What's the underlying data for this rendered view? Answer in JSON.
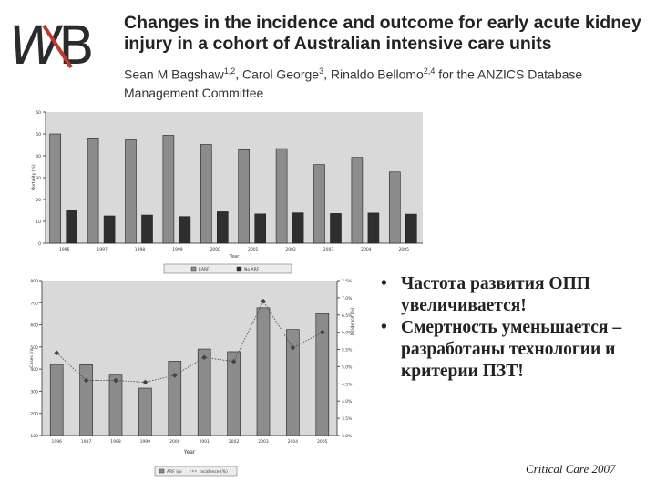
{
  "logo": {
    "text": "WB",
    "accent": "#c0392b"
  },
  "header": {
    "title": "Changes in the incidence and outcome for early acute kidney injury in a cohort of Australian intensive care units",
    "authors": [
      {
        "name": "Sean M Bagshaw",
        "sup": "1,2",
        "sep": ", "
      },
      {
        "name": "Carol George",
        "sup": "3",
        "sep": ", "
      },
      {
        "name": "Rinaldo Bellomo",
        "sup": "2,4",
        "sep": " "
      },
      {
        "name": "for the ANZICS Database Management Committee",
        "sup": "",
        "sep": ""
      }
    ]
  },
  "bullets": [
    "Частота развития ОПП увеличивается!",
    "Смертность уменьшается – разработаны технологии и критерии ПЗТ!"
  ],
  "citation": "Critical Care 2007",
  "chart_data": [
    {
      "type": "bar",
      "ylabel": "Mortality (%)",
      "xlabel": "Year",
      "ylim": [
        0,
        60
      ],
      "yticks": [
        0,
        10,
        20,
        30,
        40,
        50,
        60
      ],
      "categories": [
        "1996",
        "1997",
        "1998",
        "1999",
        "2000",
        "2001",
        "2002",
        "2003",
        "2004",
        "2005"
      ],
      "series": [
        {
          "name": "EARF",
          "color": "#8c8c8c",
          "values": [
            50,
            47.8,
            47.3,
            49.4,
            45.2,
            42.8,
            43.3,
            36,
            39.3,
            32.6
          ]
        },
        {
          "name": "No ARF",
          "color": "#2f2f2f",
          "values": [
            15.2,
            12.5,
            12.9,
            12.2,
            14.4,
            13.4,
            13.9,
            13.6,
            13.8,
            13.3
          ]
        }
      ],
      "legend_position": "bottom",
      "grid": false
    },
    {
      "type": "bar",
      "ylabel": "Cases (n)",
      "y2label": "Incidence (%)",
      "xlabel": "Year",
      "ylim": [
        100,
        800
      ],
      "yticks": [
        100,
        200,
        300,
        400,
        500,
        600,
        700,
        800
      ],
      "y2lim": [
        3.0,
        7.5
      ],
      "y2ticks": [
        "3.0%",
        "3.5%",
        "4.0%",
        "4.5%",
        "5.0%",
        "5.5%",
        "6.0%",
        "6.5%",
        "7.0%",
        "7.5%"
      ],
      "categories": [
        "1996",
        "1997",
        "1998",
        "1999",
        "2000",
        "2001",
        "2002",
        "2003",
        "2004",
        "2005"
      ],
      "series": [
        {
          "name": "ARF (n)",
          "kind": "bar",
          "color": "#8c8c8c",
          "values": [
            421,
            420,
            373,
            314,
            436,
            491,
            479,
            677,
            579,
            651
          ]
        },
        {
          "name": "Incidence (%)",
          "kind": "line",
          "color": "#444444",
          "values": [
            5.4,
            4.6,
            4.6,
            4.55,
            4.75,
            5.27,
            5.15,
            6.9,
            5.55,
            6.0
          ]
        }
      ],
      "legend_position": "bottom",
      "grid": false
    }
  ]
}
